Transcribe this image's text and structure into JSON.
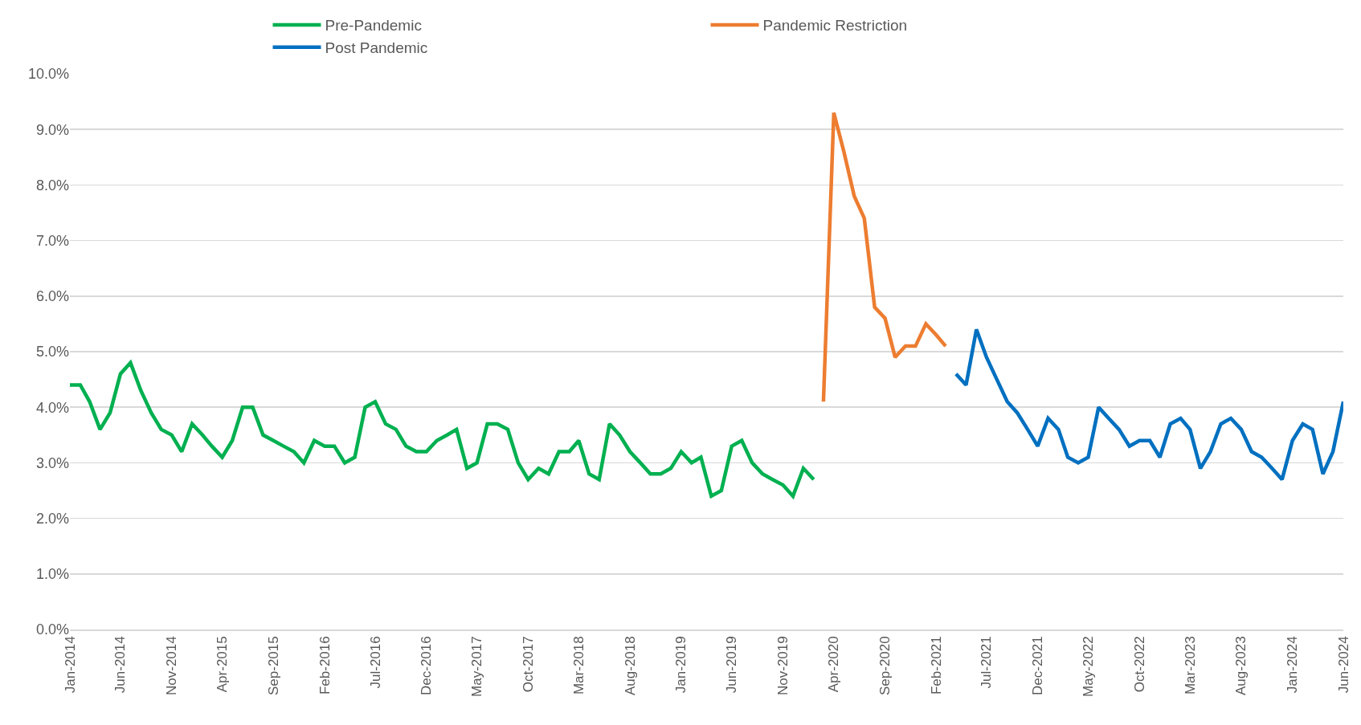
{
  "chart_data": {
    "type": "line",
    "legend": "top",
    "grid": "y",
    "line_style": "solid",
    "marker": "none",
    "xlim": [
      "2014-01",
      "2024-06"
    ],
    "xticks": [
      {
        "value": "2014-01",
        "label": "Jan-2014"
      },
      {
        "value": "2014-06",
        "label": "Jun-2014"
      },
      {
        "value": "2014-11",
        "label": "Nov-2014"
      },
      {
        "value": "2015-04",
        "label": "Apr-2015"
      },
      {
        "value": "2015-09",
        "label": "Sep-2015"
      },
      {
        "value": "2016-02",
        "label": "Feb-2016"
      },
      {
        "value": "2016-07",
        "label": "Jul-2016"
      },
      {
        "value": "2016-12",
        "label": "Dec-2016"
      },
      {
        "value": "2017-05",
        "label": "May-2017"
      },
      {
        "value": "2017-10",
        "label": "Oct-2017"
      },
      {
        "value": "2018-03",
        "label": "Mar-2018"
      },
      {
        "value": "2018-08",
        "label": "Aug-2018"
      },
      {
        "value": "2019-01",
        "label": "Jan-2019"
      },
      {
        "value": "2019-06",
        "label": "Jun-2019"
      },
      {
        "value": "2019-11",
        "label": "Nov-2019"
      },
      {
        "value": "2020-04",
        "label": "Apr-2020"
      },
      {
        "value": "2020-09",
        "label": "Sep-2020"
      },
      {
        "value": "2021-02",
        "label": "Feb-2021"
      },
      {
        "value": "2021-07",
        "label": "Jul-2021"
      },
      {
        "value": "2021-12",
        "label": "Dec-2021"
      },
      {
        "value": "2022-05",
        "label": "May-2022"
      },
      {
        "value": "2022-10",
        "label": "Oct-2022"
      },
      {
        "value": "2023-03",
        "label": "Mar-2023"
      },
      {
        "value": "2023-08",
        "label": "Aug-2023"
      },
      {
        "value": "2024-01",
        "label": "Jan-2024"
      },
      {
        "value": "2024-06",
        "label": "Jun-2024"
      }
    ],
    "ylim": [
      0,
      10
    ],
    "yticks": [
      {
        "value": 0,
        "label": "0.0%"
      },
      {
        "value": 1,
        "label": "1.0%"
      },
      {
        "value": 2,
        "label": "2.0%"
      },
      {
        "value": 3,
        "label": "3.0%"
      },
      {
        "value": 4,
        "label": "4.0%"
      },
      {
        "value": 5,
        "label": "5.0%"
      },
      {
        "value": 6,
        "label": "6.0%"
      },
      {
        "value": 7,
        "label": "7.0%"
      },
      {
        "value": 8,
        "label": "8.0%"
      },
      {
        "value": 9,
        "label": "9.0%"
      },
      {
        "value": 10,
        "label": "10.0%"
      }
    ],
    "series": [
      {
        "name": "Pre-Pandemic",
        "color": "#00b050",
        "x": [
          "2014-01",
          "2014-02",
          "2014-03",
          "2014-04",
          "2014-05",
          "2014-06",
          "2014-07",
          "2014-08",
          "2014-09",
          "2014-10",
          "2014-11",
          "2014-12",
          "2015-01",
          "2015-02",
          "2015-03",
          "2015-04",
          "2015-05",
          "2015-06",
          "2015-07",
          "2015-08",
          "2015-09",
          "2015-10",
          "2015-11",
          "2015-12",
          "2016-01",
          "2016-02",
          "2016-03",
          "2016-04",
          "2016-05",
          "2016-06",
          "2016-07",
          "2016-08",
          "2016-09",
          "2016-10",
          "2016-11",
          "2016-12",
          "2017-01",
          "2017-02",
          "2017-03",
          "2017-04",
          "2017-05",
          "2017-06",
          "2017-07",
          "2017-08",
          "2017-09",
          "2017-10",
          "2017-11",
          "2017-12",
          "2018-01",
          "2018-02",
          "2018-03",
          "2018-04",
          "2018-05",
          "2018-06",
          "2018-07",
          "2018-08",
          "2018-09",
          "2018-10",
          "2018-11",
          "2018-12",
          "2019-01",
          "2019-02",
          "2019-03",
          "2019-04",
          "2019-05",
          "2019-06",
          "2019-07",
          "2019-08",
          "2019-09",
          "2019-10",
          "2019-11",
          "2019-12",
          "2020-01",
          "2020-02"
        ],
        "values": [
          4.4,
          4.4,
          4.1,
          3.6,
          3.9,
          4.6,
          4.8,
          4.3,
          3.9,
          3.6,
          3.5,
          3.2,
          3.7,
          3.5,
          3.3,
          3.1,
          3.4,
          4.0,
          4.0,
          3.5,
          3.4,
          3.3,
          3.2,
          3.0,
          3.4,
          3.3,
          3.3,
          3.0,
          3.1,
          4.0,
          4.1,
          3.7,
          3.6,
          3.3,
          3.2,
          3.2,
          3.4,
          3.5,
          3.6,
          2.9,
          3.0,
          3.7,
          3.7,
          3.6,
          3.0,
          2.7,
          2.9,
          2.8,
          3.2,
          3.2,
          3.4,
          2.8,
          2.7,
          3.7,
          3.5,
          3.2,
          3.0,
          2.8,
          2.8,
          2.9,
          3.2,
          3.0,
          3.1,
          2.4,
          2.5,
          3.3,
          3.4,
          3.0,
          2.8,
          2.7,
          2.6,
          2.4,
          2.9,
          2.7
        ]
      },
      {
        "name": "Pandemic Restriction",
        "color": "#ed7d31",
        "x": [
          "2020-03",
          "2020-04",
          "2020-05",
          "2020-06",
          "2020-07",
          "2020-08",
          "2020-09",
          "2020-10",
          "2020-11",
          "2020-12",
          "2021-01",
          "2021-02",
          "2021-03"
        ],
        "values": [
          4.1,
          9.3,
          8.6,
          7.8,
          7.4,
          5.8,
          5.6,
          4.9,
          5.1,
          5.1,
          5.5,
          5.3,
          5.1
        ]
      },
      {
        "name": "Post Pandemic",
        "color": "#0070c0",
        "x": [
          "2021-04",
          "2021-05",
          "2021-06",
          "2021-07",
          "2021-08",
          "2021-09",
          "2021-10",
          "2021-11",
          "2021-12",
          "2022-01",
          "2022-02",
          "2022-03",
          "2022-04",
          "2022-05",
          "2022-06",
          "2022-07",
          "2022-08",
          "2022-09",
          "2022-10",
          "2022-11",
          "2022-12",
          "2023-01",
          "2023-02",
          "2023-03",
          "2023-04",
          "2023-05",
          "2023-06",
          "2023-07",
          "2023-08",
          "2023-09",
          "2023-10",
          "2023-11",
          "2023-12",
          "2024-01",
          "2024-02",
          "2024-03",
          "2024-04",
          "2024-05",
          "2024-06"
        ],
        "values": [
          4.6,
          4.4,
          5.4,
          4.9,
          4.5,
          4.1,
          3.9,
          3.6,
          3.3,
          3.8,
          3.6,
          3.1,
          3.0,
          3.1,
          4.0,
          3.8,
          3.6,
          3.3,
          3.4,
          3.4,
          3.1,
          3.7,
          3.8,
          3.6,
          2.9,
          3.2,
          3.7,
          3.8,
          3.6,
          3.2,
          3.1,
          2.9,
          2.7,
          3.4,
          3.7,
          3.6,
          2.8,
          3.2,
          4.1
        ]
      }
    ]
  }
}
